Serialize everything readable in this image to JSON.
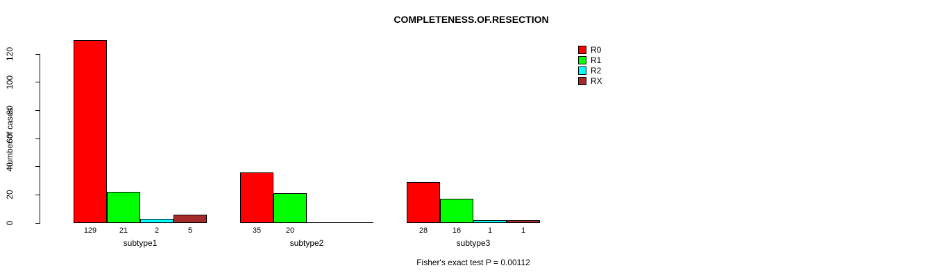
{
  "chart_data": {
    "type": "bar",
    "title": "COMPLETENESS.OF.RESECTION",
    "ylabel": "number of cases",
    "xlabel": "",
    "annotation": "Fisher's exact test P = 0.00112",
    "categories": [
      "subtype1",
      "subtype2",
      "subtype3"
    ],
    "series": [
      {
        "name": "R0",
        "color": "#FF0000",
        "values": [
          129,
          35,
          28
        ]
      },
      {
        "name": "R1",
        "color": "#00FF00",
        "values": [
          21,
          20,
          16
        ]
      },
      {
        "name": "R2",
        "color": "#00FFFF",
        "values": [
          2,
          0,
          1
        ]
      },
      {
        "name": "RX",
        "color": "#A52A2A",
        "values": [
          5,
          0,
          1
        ]
      }
    ],
    "bar_value_labels": [
      [
        129,
        21,
        2,
        5
      ],
      [
        35,
        20,
        null,
        null
      ],
      [
        28,
        16,
        1,
        1
      ]
    ],
    "y_ticks": [
      0,
      20,
      40,
      60,
      80,
      100,
      120
    ],
    "ylim": [
      0,
      120
    ],
    "grid": false,
    "legend_position": "top-right",
    "axis_color": "#000000",
    "background_color": "#FFFFFF"
  }
}
